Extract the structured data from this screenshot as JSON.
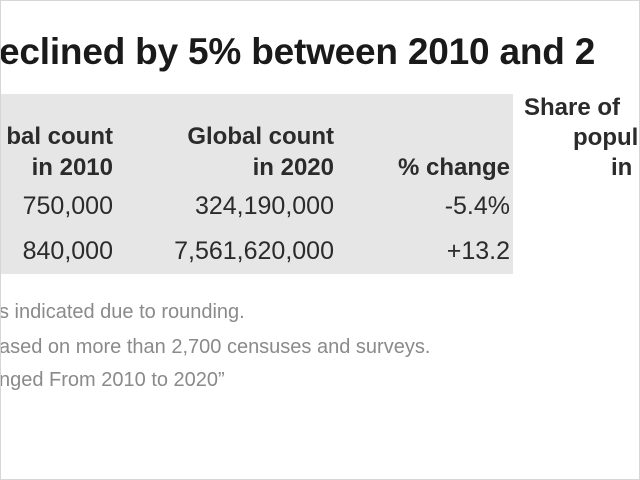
{
  "title": "eclined by 5% between 2010 and 2",
  "table": {
    "headers": {
      "col_2010": [
        "bal count",
        "in 2010"
      ],
      "col_2020": [
        "Global count",
        "in 2020"
      ],
      "col_change": "% change"
    },
    "rows": [
      {
        "count_2010": "750,000",
        "count_2020": "324,190,000",
        "change": "-5.4%"
      },
      {
        "count_2010": "840,000",
        "count_2020": "7,561,620,000",
        "change": "+13.2"
      }
    ]
  },
  "side_header": [
    "Share of ",
    "popul",
    "in "
  ],
  "notes": [
    "s indicated due to rounding.",
    "ased on more than 2,700 censuses and surveys.",
    "nged From 2010 to 2020”"
  ]
}
